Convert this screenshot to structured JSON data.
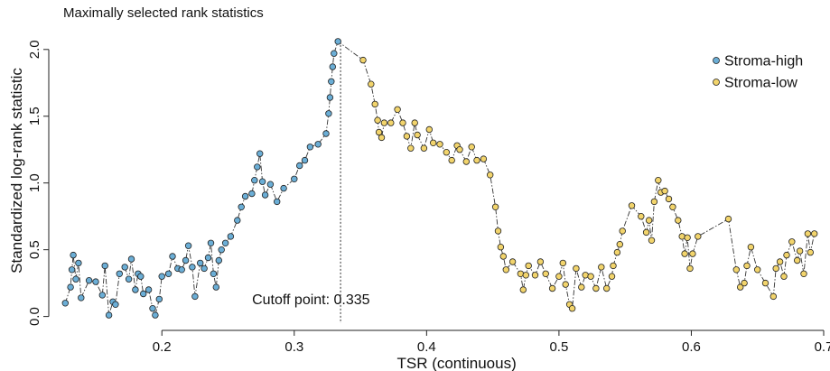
{
  "chart_data": {
    "type": "scatter",
    "title": "Maximally selected rank statistics",
    "xlabel": "TSR (continuous)",
    "ylabel": "Standardized log-rank statistic",
    "xlim": [
      0.12,
      0.7
    ],
    "ylim": [
      -0.05,
      2.1
    ],
    "x_ticks": [
      0.2,
      0.3,
      0.4,
      0.5,
      0.6,
      0.7
    ],
    "x_tick_labels": [
      "0.2",
      "0.3",
      "0.4",
      "0.5",
      "0.6",
      "0.7"
    ],
    "y_ticks": [
      0.0,
      0.5,
      1.0,
      1.5,
      2.0
    ],
    "y_tick_labels": [
      "0.0",
      "0.5",
      "1.0",
      "1.5",
      "2.0"
    ],
    "grid": false,
    "legend_position": "top-right",
    "cutoff": {
      "x": 0.335,
      "label": "Cutoff point: 0.335"
    },
    "connecting_line": "dash-dot",
    "series": [
      {
        "name": "Stroma-high",
        "color": "#6baed6",
        "points": [
          [
            0.127,
            0.1
          ],
          [
            0.131,
            0.22
          ],
          [
            0.132,
            0.35
          ],
          [
            0.133,
            0.46
          ],
          [
            0.135,
            0.28
          ],
          [
            0.137,
            0.4
          ],
          [
            0.139,
            0.14
          ],
          [
            0.145,
            0.27
          ],
          [
            0.15,
            0.26
          ],
          [
            0.155,
            0.16
          ],
          [
            0.157,
            0.38
          ],
          [
            0.16,
            0.01
          ],
          [
            0.163,
            0.11
          ],
          [
            0.165,
            0.09
          ],
          [
            0.168,
            0.32
          ],
          [
            0.172,
            0.37
          ],
          [
            0.175,
            0.28
          ],
          [
            0.177,
            0.43
          ],
          [
            0.18,
            0.2
          ],
          [
            0.182,
            0.32
          ],
          [
            0.184,
            0.3
          ],
          [
            0.186,
            0.17
          ],
          [
            0.19,
            0.2
          ],
          [
            0.193,
            0.06
          ],
          [
            0.195,
            0.01
          ],
          [
            0.198,
            0.13
          ],
          [
            0.2,
            0.3
          ],
          [
            0.205,
            0.32
          ],
          [
            0.208,
            0.45
          ],
          [
            0.212,
            0.36
          ],
          [
            0.215,
            0.35
          ],
          [
            0.218,
            0.42
          ],
          [
            0.22,
            0.53
          ],
          [
            0.223,
            0.37
          ],
          [
            0.225,
            0.15
          ],
          [
            0.229,
            0.4
          ],
          [
            0.232,
            0.36
          ],
          [
            0.235,
            0.44
          ],
          [
            0.237,
            0.55
          ],
          [
            0.239,
            0.32
          ],
          [
            0.241,
            0.22
          ],
          [
            0.243,
            0.42
          ],
          [
            0.245,
            0.5
          ],
          [
            0.248,
            0.55
          ],
          [
            0.252,
            0.6
          ],
          [
            0.257,
            0.72
          ],
          [
            0.26,
            0.82
          ],
          [
            0.263,
            0.9
          ],
          [
            0.268,
            0.92
          ],
          [
            0.27,
            1.02
          ],
          [
            0.272,
            1.12
          ],
          [
            0.274,
            1.22
          ],
          [
            0.276,
            1.01
          ],
          [
            0.278,
            0.91
          ],
          [
            0.282,
            0.99
          ],
          [
            0.287,
            0.86
          ],
          [
            0.292,
            0.96
          ],
          [
            0.3,
            1.03
          ],
          [
            0.304,
            1.13
          ],
          [
            0.308,
            1.17
          ],
          [
            0.312,
            1.27
          ],
          [
            0.318,
            1.29
          ],
          [
            0.324,
            1.37
          ],
          [
            0.326,
            1.52
          ],
          [
            0.327,
            1.64
          ],
          [
            0.328,
            1.76
          ],
          [
            0.329,
            1.87
          ],
          [
            0.33,
            1.97
          ],
          [
            0.333,
            2.06
          ]
        ]
      },
      {
        "name": "Stroma-low",
        "color": "#f2d46c",
        "points": [
          [
            0.352,
            1.92
          ],
          [
            0.358,
            1.74
          ],
          [
            0.361,
            1.59
          ],
          [
            0.363,
            1.47
          ],
          [
            0.364,
            1.38
          ],
          [
            0.366,
            1.34
          ],
          [
            0.368,
            1.45
          ],
          [
            0.373,
            1.45
          ],
          [
            0.378,
            1.55
          ],
          [
            0.382,
            1.45
          ],
          [
            0.385,
            1.35
          ],
          [
            0.388,
            1.26
          ],
          [
            0.391,
            1.45
          ],
          [
            0.393,
            1.36
          ],
          [
            0.398,
            1.26
          ],
          [
            0.402,
            1.4
          ],
          [
            0.405,
            1.3
          ],
          [
            0.41,
            1.29
          ],
          [
            0.415,
            1.23
          ],
          [
            0.419,
            1.17
          ],
          [
            0.423,
            1.28
          ],
          [
            0.425,
            1.25
          ],
          [
            0.43,
            1.16
          ],
          [
            0.434,
            1.27
          ],
          [
            0.438,
            1.17
          ],
          [
            0.443,
            1.18
          ],
          [
            0.448,
            1.06
          ],
          [
            0.452,
            0.82
          ],
          [
            0.454,
            0.64
          ],
          [
            0.456,
            0.52
          ],
          [
            0.458,
            0.45
          ],
          [
            0.46,
            0.35
          ],
          [
            0.465,
            0.41
          ],
          [
            0.471,
            0.32
          ],
          [
            0.473,
            0.2
          ],
          [
            0.475,
            0.31
          ],
          [
            0.477,
            0.38
          ],
          [
            0.482,
            0.31
          ],
          [
            0.486,
            0.41
          ],
          [
            0.49,
            0.32
          ],
          [
            0.495,
            0.21
          ],
          [
            0.5,
            0.3
          ],
          [
            0.503,
            0.4
          ],
          [
            0.505,
            0.24
          ],
          [
            0.508,
            0.09
          ],
          [
            0.51,
            0.06
          ],
          [
            0.513,
            0.36
          ],
          [
            0.517,
            0.22
          ],
          [
            0.52,
            0.31
          ],
          [
            0.524,
            0.3
          ],
          [
            0.528,
            0.21
          ],
          [
            0.532,
            0.37
          ],
          [
            0.536,
            0.21
          ],
          [
            0.54,
            0.3
          ],
          [
            0.541,
            0.38
          ],
          [
            0.544,
            0.48
          ],
          [
            0.546,
            0.54
          ],
          [
            0.548,
            0.64
          ],
          [
            0.555,
            0.83
          ],
          [
            0.562,
            0.75
          ],
          [
            0.566,
            0.63
          ],
          [
            0.568,
            0.72
          ],
          [
            0.57,
            0.57
          ],
          [
            0.572,
            0.86
          ],
          [
            0.575,
            1.02
          ],
          [
            0.577,
            0.93
          ],
          [
            0.58,
            0.94
          ],
          [
            0.583,
            0.88
          ],
          [
            0.586,
            0.82
          ],
          [
            0.59,
            0.72
          ],
          [
            0.593,
            0.6
          ],
          [
            0.595,
            0.47
          ],
          [
            0.597,
            0.59
          ],
          [
            0.599,
            0.36
          ],
          [
            0.601,
            0.47
          ],
          [
            0.605,
            0.6
          ],
          [
            0.628,
            0.73
          ],
          [
            0.634,
            0.35
          ],
          [
            0.637,
            0.22
          ],
          [
            0.64,
            0.25
          ],
          [
            0.642,
            0.38
          ],
          [
            0.645,
            0.52
          ],
          [
            0.65,
            0.35
          ],
          [
            0.656,
            0.25
          ],
          [
            0.662,
            0.15
          ],
          [
            0.664,
            0.36
          ],
          [
            0.667,
            0.41
          ],
          [
            0.67,
            0.3
          ],
          [
            0.672,
            0.46
          ],
          [
            0.676,
            0.56
          ],
          [
            0.68,
            0.42
          ],
          [
            0.682,
            0.49
          ],
          [
            0.685,
            0.32
          ],
          [
            0.688,
            0.62
          ],
          [
            0.69,
            0.48
          ],
          [
            0.693,
            0.62
          ]
        ]
      }
    ]
  }
}
